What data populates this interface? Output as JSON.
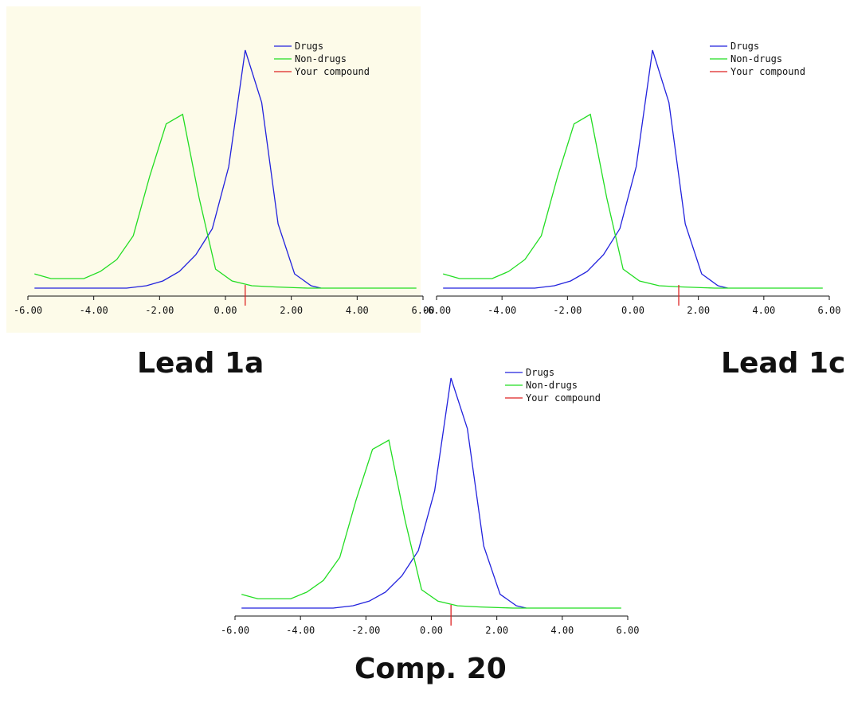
{
  "chart_data": [
    {
      "type": "line",
      "panel": "lead1a",
      "background": "#fdfbe9",
      "caption": "Lead 1a",
      "xlim": [
        -6,
        6
      ],
      "xticks": [
        "-6.00",
        "-4.00",
        "-2.00",
        "0.00",
        "2.00",
        "4.00",
        "6.00"
      ],
      "legend": [
        "Drugs",
        "Non-drugs",
        "Your compound"
      ],
      "legend_position": "top-right",
      "marker_x": 0.6,
      "series": [
        {
          "name": "Drugs",
          "color": "#2222dd",
          "x": [
            -5.8,
            -3.0,
            -2.4,
            -1.9,
            -1.4,
            -0.9,
            -0.4,
            0.1,
            0.6,
            1.1,
            1.6,
            2.1,
            2.6,
            2.9
          ],
          "y": [
            0.0,
            0.0,
            0.01,
            0.03,
            0.07,
            0.14,
            0.25,
            0.51,
            1.0,
            0.78,
            0.27,
            0.06,
            0.01,
            0.0
          ]
        },
        {
          "name": "Non-drugs",
          "color": "#22dd22",
          "x": [
            -5.8,
            -5.3,
            -4.8,
            -4.3,
            -3.8,
            -3.3,
            -2.8,
            -2.3,
            -1.8,
            -1.3,
            -0.8,
            -0.3,
            0.2,
            0.8,
            1.5,
            2.5,
            3.5,
            5.8
          ],
          "y": [
            0.06,
            0.04,
            0.04,
            0.04,
            0.07,
            0.12,
            0.22,
            0.47,
            0.69,
            0.73,
            0.38,
            0.08,
            0.03,
            0.01,
            0.005,
            0.0,
            0.0,
            0.0
          ]
        }
      ]
    },
    {
      "type": "line",
      "panel": "lead1c",
      "background": "#ffffff",
      "caption": "Lead 1c",
      "xlim": [
        -6,
        6
      ],
      "xticks": [
        "-6.00",
        "-4.00",
        "-2.00",
        "0.00",
        "2.00",
        "4.00",
        "6.00"
      ],
      "legend": [
        "Drugs",
        "Non-drugs",
        "Your compound"
      ],
      "legend_position": "top-right",
      "marker_x": 1.4,
      "series": [
        {
          "name": "Drugs",
          "color": "#2222dd",
          "x": [
            -5.8,
            -3.0,
            -2.4,
            -1.9,
            -1.4,
            -0.9,
            -0.4,
            0.1,
            0.6,
            1.1,
            1.6,
            2.1,
            2.6,
            2.9
          ],
          "y": [
            0.0,
            0.0,
            0.01,
            0.03,
            0.07,
            0.14,
            0.25,
            0.51,
            1.0,
            0.78,
            0.27,
            0.06,
            0.01,
            0.0
          ]
        },
        {
          "name": "Non-drugs",
          "color": "#22dd22",
          "x": [
            -5.8,
            -5.3,
            -4.8,
            -4.3,
            -3.8,
            -3.3,
            -2.8,
            -2.3,
            -1.8,
            -1.3,
            -0.8,
            -0.3,
            0.2,
            0.8,
            1.5,
            2.5,
            3.5,
            5.8
          ],
          "y": [
            0.06,
            0.04,
            0.04,
            0.04,
            0.07,
            0.12,
            0.22,
            0.47,
            0.69,
            0.73,
            0.38,
            0.08,
            0.03,
            0.01,
            0.005,
            0.0,
            0.0,
            0.0
          ]
        }
      ]
    },
    {
      "type": "line",
      "panel": "comp20",
      "background": "#ffffff",
      "caption": "Comp. 20",
      "xlim": [
        -6,
        6
      ],
      "xticks": [
        "-6.00",
        "-4.00",
        "-2.00",
        "0.00",
        "2.00",
        "4.00",
        "6.00"
      ],
      "legend": [
        "Drugs",
        "Non-drugs",
        "Your compound"
      ],
      "legend_position": "top-right",
      "marker_x": 0.6,
      "series": [
        {
          "name": "Drugs",
          "color": "#2222dd",
          "x": [
            -5.8,
            -3.0,
            -2.4,
            -1.9,
            -1.4,
            -0.9,
            -0.4,
            0.1,
            0.6,
            1.1,
            1.6,
            2.1,
            2.6,
            2.9
          ],
          "y": [
            0.0,
            0.0,
            0.01,
            0.03,
            0.07,
            0.14,
            0.25,
            0.51,
            1.0,
            0.78,
            0.27,
            0.06,
            0.01,
            0.0
          ]
        },
        {
          "name": "Non-drugs",
          "color": "#22dd22",
          "x": [
            -5.8,
            -5.3,
            -4.8,
            -4.3,
            -3.8,
            -3.3,
            -2.8,
            -2.3,
            -1.8,
            -1.3,
            -0.8,
            -0.3,
            0.2,
            0.8,
            1.5,
            2.5,
            3.5,
            5.8
          ],
          "y": [
            0.06,
            0.04,
            0.04,
            0.04,
            0.07,
            0.12,
            0.22,
            0.47,
            0.69,
            0.73,
            0.38,
            0.08,
            0.03,
            0.01,
            0.005,
            0.0,
            0.0,
            0.0
          ]
        }
      ]
    }
  ],
  "marker_color": "#dd2222",
  "axis_color": "#111111"
}
